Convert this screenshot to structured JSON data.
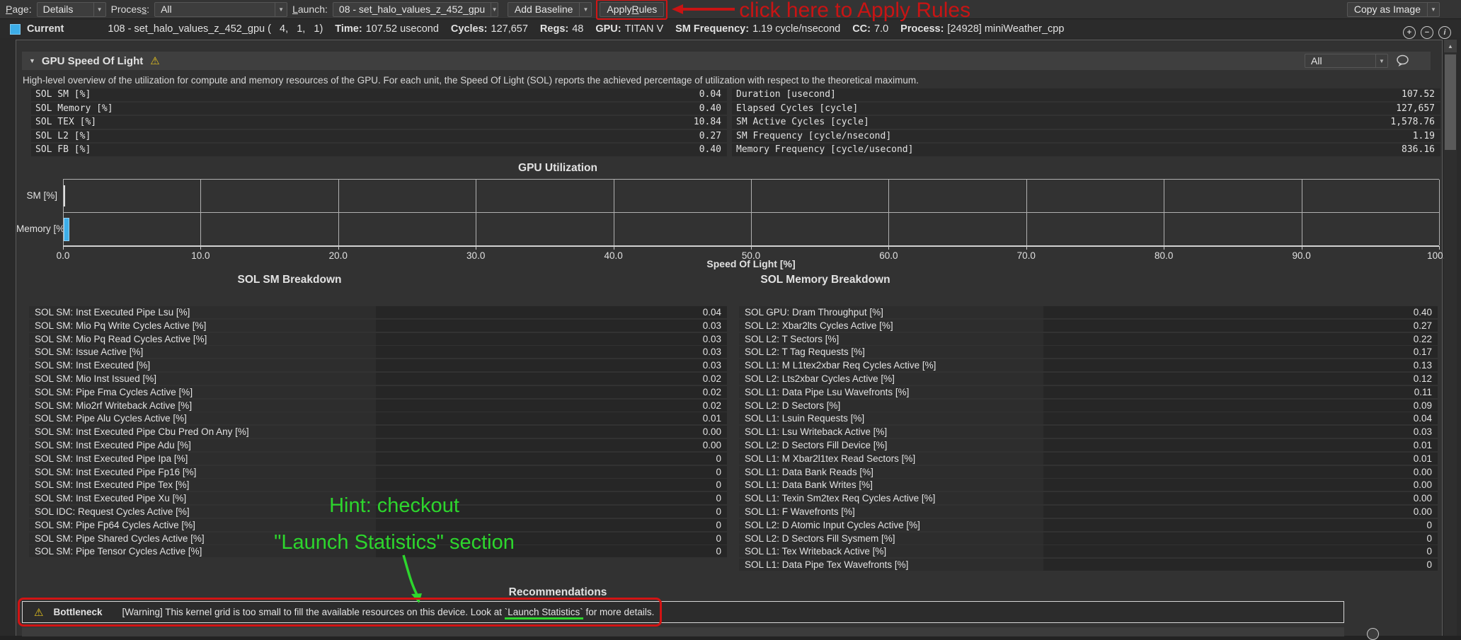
{
  "toolbar": {
    "page_label": {
      "pre": "",
      "key": "P",
      "post": "age:"
    },
    "page_value": "Details",
    "process_label": {
      "pre": "Proces",
      "key": "s",
      "post": ":"
    },
    "process_value": "All",
    "launch_label": {
      "pre": "",
      "key": "L",
      "post": "aunch:"
    },
    "launch_value": "08 - set_halo_values_z_452_gpu",
    "add_baseline": "Add Baseline",
    "apply_rules": {
      "pre": "Apply ",
      "key": "R",
      "post": "ules"
    },
    "copy_as_image": "Copy as Image"
  },
  "current_row": {
    "label": "Current",
    "kernel": "108 - set_halo_values_z_452_gpu (   4,   1,   1)",
    "stats": [
      {
        "k": "Time:",
        "v": "107.52 usecond"
      },
      {
        "k": "Cycles:",
        "v": "127,657"
      },
      {
        "k": "Regs:",
        "v": "48"
      },
      {
        "k": "GPU:",
        "v": "TITAN V"
      },
      {
        "k": "SM Frequency:",
        "v": "1.19 cycle/nsecond"
      },
      {
        "k": "CC:",
        "v": "7.0"
      },
      {
        "k": "Process:",
        "v": "[24928] miniWeather_cpp"
      }
    ]
  },
  "section": {
    "collapse_icon": "▼",
    "title": "GPU Speed Of Light",
    "warning_icon": "⚠",
    "filter_value": "All",
    "description": "High-level overview of the utilization for compute and memory resources of the GPU. For each unit, the Speed Of Light (SOL) reports the achieved percentage of utilization with respect to the theoretical maximum."
  },
  "sol_metrics_left": [
    {
      "label": "SOL SM [%]",
      "value": "0.04"
    },
    {
      "label": "SOL Memory [%]",
      "value": "0.40"
    },
    {
      "label": "SOL TEX [%]",
      "value": "10.84"
    },
    {
      "label": "SOL L2 [%]",
      "value": "0.27"
    },
    {
      "label": "SOL FB [%]",
      "value": "0.40"
    }
  ],
  "sol_metrics_right": [
    {
      "label": "Duration [usecond]",
      "value": "107.52"
    },
    {
      "label": "Elapsed Cycles [cycle]",
      "value": "127,657"
    },
    {
      "label": "SM Active Cycles [cycle]",
      "value": "1,578.76"
    },
    {
      "label": "SM Frequency [cycle/nsecond]",
      "value": "1.19"
    },
    {
      "label": "Memory Frequency [cycle/usecond]",
      "value": "836.16"
    }
  ],
  "chart_data": {
    "type": "bar",
    "orientation": "horizontal",
    "title": "GPU Utilization",
    "categories": [
      "SM [%]",
      "Memory [%]"
    ],
    "values": [
      0.04,
      0.4
    ],
    "xlabel": "Speed Of Light [%]",
    "xlim": [
      0,
      100
    ],
    "x_ticks": [
      "0.0",
      "10.0",
      "20.0",
      "30.0",
      "40.0",
      "50.0",
      "60.0",
      "70.0",
      "80.0",
      "90.0",
      "100.0"
    ],
    "grid": true,
    "bar_color": "#3daee9"
  },
  "breakdown_sm": {
    "title": "SOL SM Breakdown",
    "rows": [
      {
        "label": "SOL SM: Inst Executed Pipe Lsu [%]",
        "value": "0.04"
      },
      {
        "label": "SOL SM: Mio Pq Write Cycles Active [%]",
        "value": "0.03"
      },
      {
        "label": "SOL SM: Mio Pq Read Cycles Active [%]",
        "value": "0.03"
      },
      {
        "label": "SOL SM: Issue Active [%]",
        "value": "0.03"
      },
      {
        "label": "SOL SM: Inst Executed [%]",
        "value": "0.03"
      },
      {
        "label": "SOL SM: Mio Inst Issued [%]",
        "value": "0.02"
      },
      {
        "label": "SOL SM: Pipe Fma Cycles Active [%]",
        "value": "0.02"
      },
      {
        "label": "SOL SM: Mio2rf Writeback Active [%]",
        "value": "0.02"
      },
      {
        "label": "SOL SM: Pipe Alu Cycles Active [%]",
        "value": "0.01"
      },
      {
        "label": "SOL SM: Inst Executed Pipe Cbu Pred On Any [%]",
        "value": "0.00"
      },
      {
        "label": "SOL SM: Inst Executed Pipe Adu [%]",
        "value": "0.00"
      },
      {
        "label": "SOL SM: Inst Executed Pipe Ipa [%]",
        "value": "0"
      },
      {
        "label": "SOL SM: Inst Executed Pipe Fp16 [%]",
        "value": "0"
      },
      {
        "label": "SOL SM: Inst Executed Pipe Tex [%]",
        "value": "0"
      },
      {
        "label": "SOL SM: Inst Executed Pipe Xu [%]",
        "value": "0"
      },
      {
        "label": "SOL IDC: Request Cycles Active [%]",
        "value": "0"
      },
      {
        "label": "SOL SM: Pipe Fp64 Cycles Active [%]",
        "value": "0"
      },
      {
        "label": "SOL SM: Pipe Shared Cycles Active [%]",
        "value": "0"
      },
      {
        "label": "SOL SM: Pipe Tensor Cycles Active [%]",
        "value": "0"
      }
    ]
  },
  "breakdown_memory": {
    "title": "SOL Memory Breakdown",
    "rows": [
      {
        "label": "SOL GPU: Dram Throughput [%]",
        "value": "0.40"
      },
      {
        "label": "SOL L2: Xbar2lts Cycles Active [%]",
        "value": "0.27"
      },
      {
        "label": "SOL L2: T Sectors [%]",
        "value": "0.22"
      },
      {
        "label": "SOL L2: T Tag Requests [%]",
        "value": "0.17"
      },
      {
        "label": "SOL L1: M L1tex2xbar Req Cycles Active [%]",
        "value": "0.13"
      },
      {
        "label": "SOL L2: Lts2xbar Cycles Active [%]",
        "value": "0.12"
      },
      {
        "label": "SOL L1: Data Pipe Lsu Wavefronts [%]",
        "value": "0.11"
      },
      {
        "label": "SOL L2: D Sectors [%]",
        "value": "0.09"
      },
      {
        "label": "SOL L1: Lsuin Requests [%]",
        "value": "0.04"
      },
      {
        "label": "SOL L1: Lsu Writeback Active [%]",
        "value": "0.03"
      },
      {
        "label": "SOL L2: D Sectors Fill Device [%]",
        "value": "0.01"
      },
      {
        "label": "SOL L1: M Xbar2l1tex Read Sectors [%]",
        "value": "0.01"
      },
      {
        "label": "SOL L1: Data Bank Reads [%]",
        "value": "0.00"
      },
      {
        "label": "SOL L1: Data Bank Writes [%]",
        "value": "0.00"
      },
      {
        "label": "SOL L1: Texin Sm2tex Req Cycles Active [%]",
        "value": "0.00"
      },
      {
        "label": "SOL L1: F Wavefronts [%]",
        "value": "0.00"
      },
      {
        "label": "SOL L2: D Atomic Input Cycles Active [%]",
        "value": "0"
      },
      {
        "label": "SOL L2: D Sectors Fill Sysmem [%]",
        "value": "0"
      },
      {
        "label": "SOL L1: Tex Writeback Active [%]",
        "value": "0"
      },
      {
        "label": "SOL L1: Data Pipe Tex Wavefronts [%]",
        "value": "0"
      }
    ]
  },
  "recommendations": {
    "title": "Recommendations",
    "warning_icon": "⚠",
    "label": "Bottleneck",
    "msg_pre": "[Warning] This kernel grid is too small to fill the available resources on this device. Look at ",
    "msg_link": "`Launch Statistics`",
    "msg_post": " for more details."
  },
  "annotations": {
    "red_color": "#d21414",
    "green_color": "#2dd62d",
    "apply_callout": "click here to Apply Rules",
    "hint_line1": "Hint: checkout",
    "hint_line2": "\"Launch Statistics\" section"
  },
  "icons": {
    "dropdown_arrow": "▼",
    "scroll_up_arrow": "▲",
    "zoom_in": "+",
    "zoom_out": "−",
    "info": "i"
  }
}
